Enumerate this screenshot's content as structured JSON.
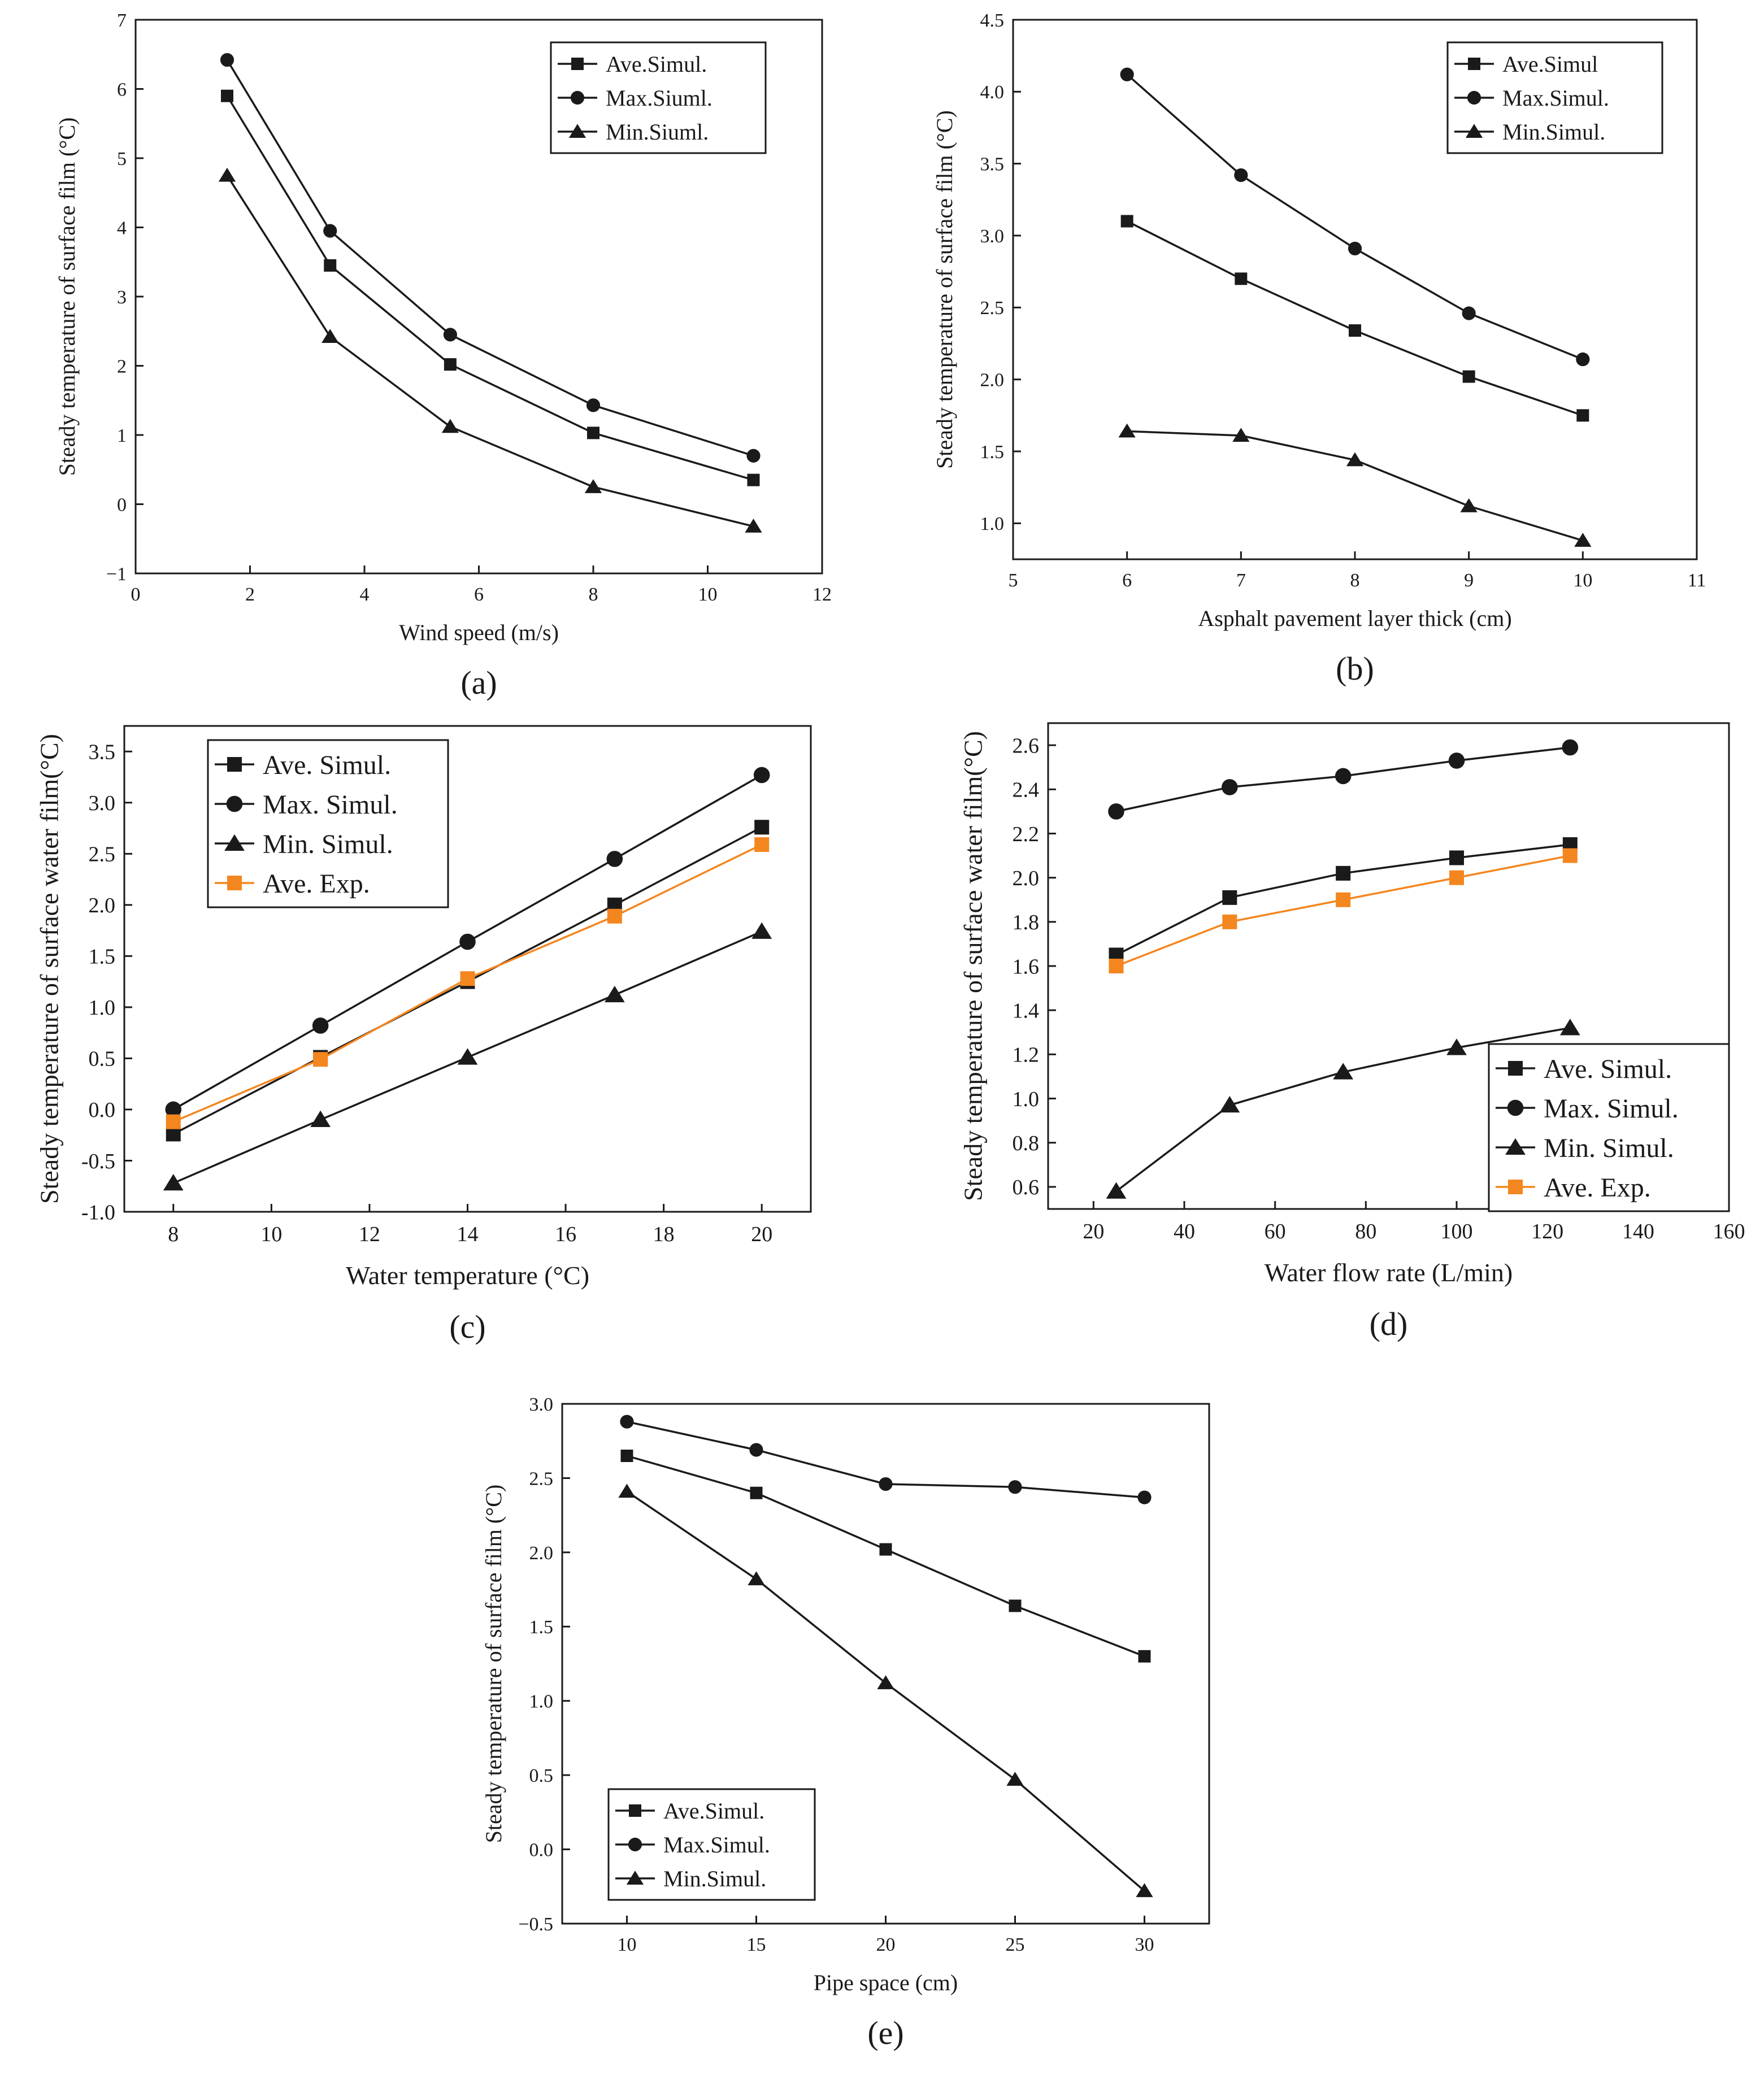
{
  "figure": {
    "colors": {
      "simul": "#1a1a1a",
      "exp": "#f4861f"
    },
    "chart_data": [
      {
        "id": "a",
        "type": "line",
        "panel_label": "(a)",
        "title": "",
        "xlabel": "Wind speed (m/s)",
        "ylabel": "Steady temperature of surface film (°C)",
        "xlim": [
          0,
          12
        ],
        "ylim": [
          -1,
          7
        ],
        "xticks": [
          0,
          2,
          4,
          6,
          8,
          10,
          12
        ],
        "yticks": [
          -1,
          0,
          1,
          2,
          3,
          4,
          5,
          6,
          7
        ],
        "ytick_labels": [
          "−1",
          "0",
          "1",
          "2",
          "3",
          "4",
          "5",
          "6",
          "7"
        ],
        "legend_position": "top-right",
        "series": [
          {
            "name": "Ave.Simul.",
            "marker": "square",
            "color": "#1a1a1a",
            "x": [
              1.6,
              3.4,
              5.5,
              8.0,
              10.8
            ],
            "y": [
              5.9,
              3.45,
              2.02,
              1.03,
              0.35
            ]
          },
          {
            "name": "Max.Siuml.",
            "marker": "circle",
            "color": "#1a1a1a",
            "x": [
              1.6,
              3.4,
              5.5,
              8.0,
              10.8
            ],
            "y": [
              6.42,
              3.95,
              2.45,
              1.43,
              0.7
            ]
          },
          {
            "name": "Min.Siuml.",
            "marker": "triangle",
            "color": "#1a1a1a",
            "x": [
              1.6,
              3.4,
              5.5,
              8.0,
              10.8
            ],
            "y": [
              4.75,
              2.42,
              1.12,
              0.25,
              -0.32
            ]
          }
        ]
      },
      {
        "id": "b",
        "type": "line",
        "panel_label": "(b)",
        "title": "",
        "xlabel": "Asphalt pavement layer thick (cm)",
        "ylabel": "Steady temperature of surface film (°C)",
        "xlim": [
          5,
          11
        ],
        "ylim": [
          0.75,
          4.5
        ],
        "xticks": [
          5,
          6,
          7,
          8,
          9,
          10,
          11
        ],
        "yticks": [
          1.0,
          1.5,
          2.0,
          2.5,
          3.0,
          3.5,
          4.0,
          4.5
        ],
        "ytick_labels": [
          "1.0",
          "1.5",
          "2.0",
          "2.5",
          "3.0",
          "3.5",
          "4.0",
          "4.5"
        ],
        "legend_position": "top-right",
        "series": [
          {
            "name": "Ave.Simul",
            "marker": "square",
            "color": "#1a1a1a",
            "x": [
              6,
              7,
              8,
              9,
              10
            ],
            "y": [
              3.1,
              2.7,
              2.34,
              2.02,
              1.75
            ]
          },
          {
            "name": "Max.Simul.",
            "marker": "circle",
            "color": "#1a1a1a",
            "x": [
              6,
              7,
              8,
              9,
              10
            ],
            "y": [
              4.12,
              3.42,
              2.91,
              2.46,
              2.14
            ]
          },
          {
            "name": "Min.Simul.",
            "marker": "triangle",
            "color": "#1a1a1a",
            "x": [
              6,
              7,
              8,
              9,
              10
            ],
            "y": [
              1.64,
              1.61,
              1.44,
              1.12,
              0.88
            ]
          }
        ]
      },
      {
        "id": "c",
        "type": "line",
        "panel_label": "(c)",
        "title": "",
        "xlabel": "Water temperature (°C)",
        "ylabel": "Steady temperature of surface water film(°C)",
        "xlim": [
          7,
          21
        ],
        "ylim": [
          -1.0,
          3.75
        ],
        "xticks": [
          8,
          10,
          12,
          14,
          16,
          18,
          20
        ],
        "yticks": [
          -1.0,
          -0.5,
          0.0,
          0.5,
          1.0,
          1.5,
          2.0,
          2.5,
          3.0,
          3.5
        ],
        "ytick_labels": [
          "-1.0",
          "-0.5",
          "0.0",
          "0.5",
          "1.0",
          "1.5",
          "2.0",
          "2.5",
          "3.0",
          "3.5"
        ],
        "legend_position": "top-left",
        "series": [
          {
            "name": "Ave. Simul.",
            "marker": "square",
            "color": "#1a1a1a",
            "x": [
              8,
              11,
              14,
              17,
              20
            ],
            "y": [
              -0.24,
              0.51,
              1.25,
              2.0,
              2.76
            ]
          },
          {
            "name": "Max. Simul.",
            "marker": "circle",
            "color": "#1a1a1a",
            "x": [
              8,
              11,
              14,
              17,
              20
            ],
            "y": [
              0.0,
              0.82,
              1.64,
              2.45,
              3.27
            ]
          },
          {
            "name": "Min. Simul.",
            "marker": "triangle",
            "color": "#1a1a1a",
            "x": [
              8,
              11,
              14,
              17,
              20
            ],
            "y": [
              -0.72,
              -0.1,
              0.51,
              1.12,
              1.74
            ]
          },
          {
            "name": "Ave. Exp.",
            "marker": "square",
            "color": "#f4861f",
            "x": [
              8,
              11,
              14,
              17,
              20
            ],
            "y": [
              -0.12,
              0.49,
              1.28,
              1.89,
              2.59
            ]
          }
        ]
      },
      {
        "id": "d",
        "type": "line",
        "panel_label": "(d)",
        "title": "",
        "xlabel": "Water flow rate (L/min)",
        "ylabel": "Steady temperature of surface water film(°C)",
        "xlim": [
          10,
          160
        ],
        "ylim": [
          0.5,
          2.7
        ],
        "xticks": [
          20,
          40,
          60,
          80,
          100,
          120,
          140,
          160
        ],
        "yticks": [
          0.6,
          0.8,
          1.0,
          1.2,
          1.4,
          1.6,
          1.8,
          2.0,
          2.2,
          2.4,
          2.6
        ],
        "ytick_labels": [
          "0.6",
          "0.8",
          "1.0",
          "1.2",
          "1.4",
          "1.6",
          "1.8",
          "2.0",
          "2.2",
          "2.4",
          "2.6"
        ],
        "legend_position": "bottom-right",
        "series": [
          {
            "name": "Ave. Simul.",
            "marker": "square",
            "color": "#1a1a1a",
            "x": [
              25,
              50,
              75,
              100,
              125
            ],
            "y": [
              1.65,
              1.91,
              2.02,
              2.09,
              2.15
            ]
          },
          {
            "name": "Max. Simul.",
            "marker": "circle",
            "color": "#1a1a1a",
            "x": [
              25,
              50,
              75,
              100,
              125
            ],
            "y": [
              2.3,
              2.41,
              2.46,
              2.53,
              2.59
            ]
          },
          {
            "name": "Min. Simul.",
            "marker": "triangle",
            "color": "#1a1a1a",
            "x": [
              25,
              50,
              75,
              100,
              125
            ],
            "y": [
              0.58,
              0.97,
              1.12,
              1.23,
              1.32
            ]
          },
          {
            "name": "Ave. Exp.",
            "marker": "square",
            "color": "#f4861f",
            "x": [
              25,
              50,
              75,
              100,
              125
            ],
            "y": [
              1.6,
              1.8,
              1.9,
              2.0,
              2.1
            ]
          }
        ]
      },
      {
        "id": "e",
        "type": "line",
        "panel_label": "(e)",
        "title": "",
        "xlabel": "Pipe space (cm)",
        "ylabel": "Steady temperature of surface film (°C)",
        "xlim": [
          7.5,
          32.5
        ],
        "ylim": [
          -0.5,
          3.0
        ],
        "xticks": [
          10,
          15,
          20,
          25,
          30
        ],
        "yticks": [
          -0.5,
          0.0,
          0.5,
          1.0,
          1.5,
          2.0,
          2.5,
          3.0
        ],
        "ytick_labels": [
          "−0.5",
          "0.0",
          "0.5",
          "1.0",
          "1.5",
          "2.0",
          "2.5",
          "3.0"
        ],
        "legend_position": "bottom-left",
        "series": [
          {
            "name": "Ave.Simul.",
            "marker": "square",
            "color": "#1a1a1a",
            "x": [
              10,
              15,
              20,
              25,
              30
            ],
            "y": [
              2.65,
              2.4,
              2.02,
              1.64,
              1.3
            ]
          },
          {
            "name": "Max.Simul.",
            "marker": "circle",
            "color": "#1a1a1a",
            "x": [
              10,
              15,
              20,
              25,
              30
            ],
            "y": [
              2.88,
              2.69,
              2.46,
              2.44,
              2.37
            ]
          },
          {
            "name": "Min.Simul.",
            "marker": "triangle",
            "color": "#1a1a1a",
            "x": [
              10,
              15,
              20,
              25,
              30
            ],
            "y": [
              2.41,
              1.82,
              1.12,
              0.47,
              -0.28
            ]
          }
        ]
      }
    ]
  }
}
